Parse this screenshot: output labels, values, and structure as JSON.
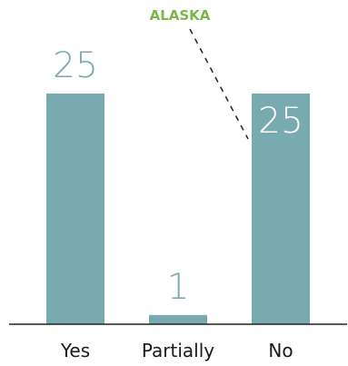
{
  "chart_data": {
    "type": "bar",
    "categories": [
      "Yes",
      "Partially",
      "No"
    ],
    "values": [
      25,
      1,
      25
    ],
    "data_labels": [
      "25",
      "1",
      "25"
    ],
    "ylim": [
      0,
      25
    ],
    "grid": false,
    "annotation": {
      "text": "ALASKA",
      "target_category": "No"
    },
    "colors": {
      "bar": "#79aab0",
      "label_outside": "#79aab0",
      "label_inside": "#ffffff",
      "annotation": "#7ab648",
      "axis": "#222222"
    }
  }
}
